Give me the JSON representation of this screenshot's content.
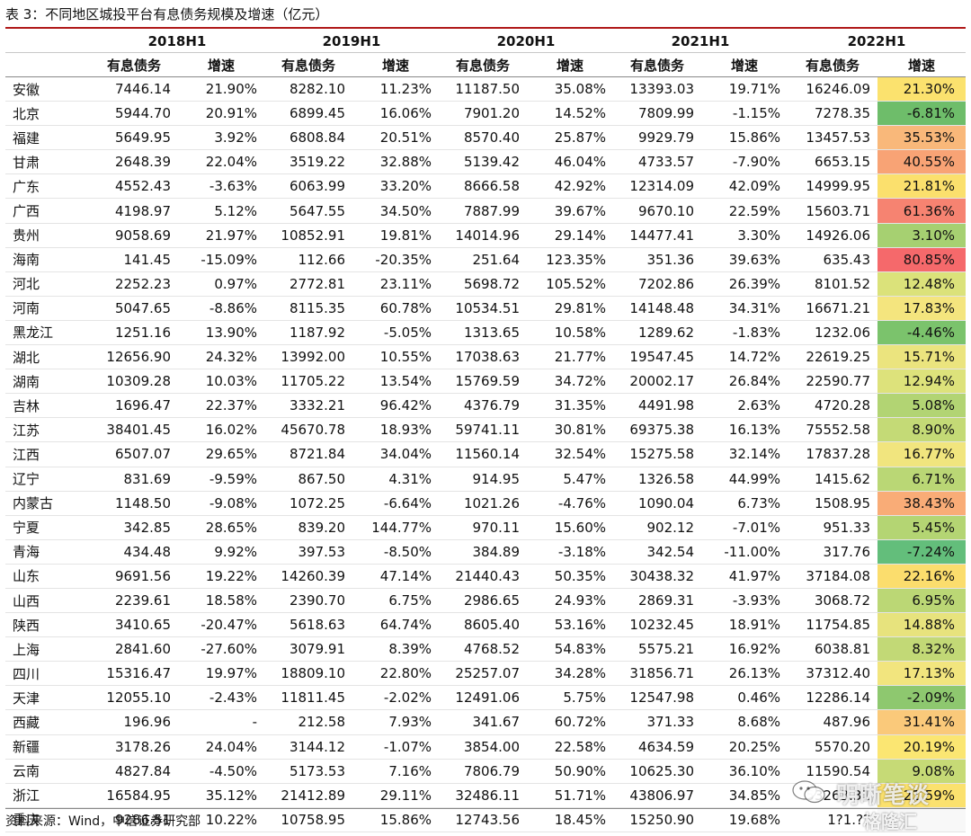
{
  "title": "表 3：不同地区城投平台有息债务规模及增速（亿元）",
  "columns": {
    "years": [
      "2018H1",
      "2019H1",
      "2020H1",
      "2021H1",
      "2022H1"
    ],
    "debt_label": "有息债务",
    "growth_label": "增速"
  },
  "rows": [
    {
      "province": "安徽",
      "d18": "7446.14",
      "g18": "21.90%",
      "d19": "8282.10",
      "g19": "11.23%",
      "d20": "11187.50",
      "g20": "35.08%",
      "d21": "13393.03",
      "g21": "19.71%",
      "d22": "16246.09",
      "g22": "21.30%",
      "c22": "#fbe26e"
    },
    {
      "province": "北京",
      "d18": "5944.70",
      "g18": "20.91%",
      "d19": "6899.45",
      "g19": "16.06%",
      "d20": "7901.20",
      "g20": "14.52%",
      "d21": "7809.99",
      "g21": "-1.15%",
      "d22": "7278.35",
      "g22": "-6.81%",
      "c22": "#6ebd6a"
    },
    {
      "province": "福建",
      "d18": "5649.95",
      "g18": "3.92%",
      "d19": "6808.84",
      "g19": "20.51%",
      "d20": "8570.40",
      "g20": "25.87%",
      "d21": "9929.79",
      "g21": "15.86%",
      "d22": "13457.53",
      "g22": "35.53%",
      "c22": "#f9b87a"
    },
    {
      "province": "甘肃",
      "d18": "2648.39",
      "g18": "22.04%",
      "d19": "3519.22",
      "g19": "32.88%",
      "d20": "5139.42",
      "g20": "46.04%",
      "d21": "4733.57",
      "g21": "-7.90%",
      "d22": "6653.15",
      "g22": "40.55%",
      "c22": "#f8a375"
    },
    {
      "province": "广东",
      "d18": "4552.43",
      "g18": "-3.63%",
      "d19": "6063.99",
      "g19": "33.20%",
      "d20": "8666.58",
      "g20": "42.92%",
      "d21": "12314.09",
      "g21": "42.09%",
      "d22": "14999.95",
      "g22": "21.81%",
      "c22": "#fbe06d"
    },
    {
      "province": "广西",
      "d18": "4198.97",
      "g18": "5.12%",
      "d19": "5647.55",
      "g19": "34.50%",
      "d20": "7887.99",
      "g20": "39.67%",
      "d21": "9670.10",
      "g21": "22.59%",
      "d22": "15603.71",
      "g22": "61.36%",
      "c22": "#f68371"
    },
    {
      "province": "贵州",
      "d18": "9058.69",
      "g18": "21.97%",
      "d19": "10852.91",
      "g19": "19.81%",
      "d20": "14014.96",
      "g20": "29.14%",
      "d21": "14477.41",
      "g21": "3.30%",
      "d22": "14926.06",
      "g22": "3.10%",
      "c22": "#a6d071"
    },
    {
      "province": "海南",
      "d18": "141.45",
      "g18": "-15.09%",
      "d19": "112.66",
      "g19": "-20.35%",
      "d20": "251.64",
      "g20": "123.35%",
      "d21": "351.36",
      "g21": "39.63%",
      "d22": "635.43",
      "g22": "80.85%",
      "c22": "#f5696b"
    },
    {
      "province": "河北",
      "d18": "2252.23",
      "g18": "0.97%",
      "d19": "2772.81",
      "g19": "23.11%",
      "d20": "5698.72",
      "g20": "105.52%",
      "d21": "7202.86",
      "g21": "26.39%",
      "d22": "8101.52",
      "g22": "12.48%",
      "c22": "#dbe27a"
    },
    {
      "province": "河南",
      "d18": "5047.65",
      "g18": "-8.86%",
      "d19": "8115.35",
      "g19": "60.78%",
      "d20": "10534.51",
      "g20": "29.81%",
      "d21": "14148.48",
      "g21": "34.31%",
      "d22": "16671.21",
      "g22": "17.83%",
      "c22": "#f4e57e"
    },
    {
      "province": "黑龙江",
      "d18": "1251.16",
      "g18": "13.90%",
      "d19": "1187.92",
      "g19": "-5.05%",
      "d20": "1313.65",
      "g20": "10.58%",
      "d21": "1289.62",
      "g21": "-1.83%",
      "d22": "1232.06",
      "g22": "-4.46%",
      "c22": "#7bc36c"
    },
    {
      "province": "湖北",
      "d18": "12656.90",
      "g18": "24.32%",
      "d19": "13992.00",
      "g19": "10.55%",
      "d20": "17038.63",
      "g20": "21.77%",
      "d21": "19547.45",
      "g21": "14.72%",
      "d22": "22619.25",
      "g22": "15.71%",
      "c22": "#ebe47e"
    },
    {
      "province": "湖南",
      "d18": "10309.28",
      "g18": "10.03%",
      "d19": "11705.22",
      "g19": "13.54%",
      "d20": "15769.59",
      "g20": "34.72%",
      "d21": "20002.17",
      "g21": "26.84%",
      "d22": "22590.77",
      "g22": "12.94%",
      "c22": "#dde27b"
    },
    {
      "province": "吉林",
      "d18": "1696.47",
      "g18": "22.37%",
      "d19": "3332.21",
      "g19": "96.42%",
      "d20": "4376.79",
      "g20": "31.35%",
      "d21": "4491.98",
      "g21": "2.63%",
      "d22": "4720.28",
      "g22": "5.08%",
      "c22": "#b2d473"
    },
    {
      "province": "江苏",
      "d18": "38401.45",
      "g18": "16.02%",
      "d19": "45670.78",
      "g19": "18.93%",
      "d20": "59741.11",
      "g20": "30.81%",
      "d21": "69375.38",
      "g21": "16.13%",
      "d22": "75552.58",
      "g22": "8.90%",
      "c22": "#c4da76"
    },
    {
      "province": "江西",
      "d18": "6507.07",
      "g18": "29.65%",
      "d19": "8721.84",
      "g19": "34.04%",
      "d20": "11560.14",
      "g20": "32.54%",
      "d21": "15275.58",
      "g21": "32.14%",
      "d22": "17837.28",
      "g22": "16.77%",
      "c22": "#f1e57e"
    },
    {
      "province": "辽宁",
      "d18": "831.69",
      "g18": "-9.59%",
      "d19": "867.50",
      "g19": "4.31%",
      "d20": "914.95",
      "g20": "5.47%",
      "d21": "1326.58",
      "g21": "44.99%",
      "d22": "1415.62",
      "g22": "6.71%",
      "c22": "#bad775"
    },
    {
      "province": "内蒙古",
      "d18": "1148.50",
      "g18": "-9.08%",
      "d19": "1072.25",
      "g19": "-6.64%",
      "d20": "1021.26",
      "g20": "-4.76%",
      "d21": "1090.04",
      "g21": "6.73%",
      "d22": "1508.95",
      "g22": "38.43%",
      "c22": "#f9ac77"
    },
    {
      "province": "宁夏",
      "d18": "342.85",
      "g18": "28.65%",
      "d19": "839.20",
      "g19": "144.77%",
      "d20": "970.11",
      "g20": "15.60%",
      "d21": "902.12",
      "g21": "-7.01%",
      "d22": "951.33",
      "g22": "5.45%",
      "c22": "#b4d573"
    },
    {
      "province": "青海",
      "d18": "434.48",
      "g18": "9.92%",
      "d19": "397.53",
      "g19": "-8.50%",
      "d20": "384.89",
      "g20": "-3.18%",
      "d21": "342.54",
      "g21": "-11.00%",
      "d22": "317.76",
      "g22": "-7.24%",
      "c22": "#63be7b"
    },
    {
      "province": "山东",
      "d18": "9691.56",
      "g18": "19.22%",
      "d19": "14260.39",
      "g19": "47.14%",
      "d20": "21440.43",
      "g20": "50.35%",
      "d21": "30438.32",
      "g21": "41.97%",
      "d22": "37184.08",
      "g22": "22.16%",
      "c22": "#fbdd6d"
    },
    {
      "province": "山西",
      "d18": "2239.61",
      "g18": "18.58%",
      "d19": "2390.70",
      "g19": "6.75%",
      "d20": "2986.65",
      "g20": "24.93%",
      "d21": "2869.31",
      "g21": "-3.93%",
      "d22": "3068.72",
      "g22": "6.95%",
      "c22": "#bbd775"
    },
    {
      "province": "陕西",
      "d18": "3410.65",
      "g18": "-20.47%",
      "d19": "5618.63",
      "g19": "64.74%",
      "d20": "8605.40",
      "g20": "53.16%",
      "d21": "10232.45",
      "g21": "18.91%",
      "d22": "11754.85",
      "g22": "14.88%",
      "c22": "#e7e37d"
    },
    {
      "province": "上海",
      "d18": "2841.60",
      "g18": "-27.60%",
      "d19": "3079.91",
      "g19": "8.39%",
      "d20": "4768.52",
      "g20": "54.83%",
      "d21": "5575.21",
      "g21": "16.92%",
      "d22": "6038.81",
      "g22": "8.32%",
      "c22": "#c2d976"
    },
    {
      "province": "四川",
      "d18": "15316.47",
      "g18": "19.97%",
      "d19": "18809.10",
      "g19": "22.80%",
      "d20": "25257.07",
      "g20": "34.28%",
      "d21": "31856.71",
      "g21": "26.13%",
      "d22": "37312.40",
      "g22": "17.13%",
      "c22": "#f2e57e"
    },
    {
      "province": "天津",
      "d18": "12055.10",
      "g18": "-2.43%",
      "d19": "11811.45",
      "g19": "-2.02%",
      "d20": "12491.06",
      "g20": "5.75%",
      "d21": "12547.98",
      "g21": "0.46%",
      "d22": "12286.14",
      "g22": "-2.09%",
      "c22": "#8ec86f"
    },
    {
      "province": "西藏",
      "d18": "196.96",
      "g18": "-",
      "d19": "212.58",
      "g19": "7.93%",
      "d20": "341.67",
      "g20": "60.72%",
      "d21": "371.33",
      "g21": "8.68%",
      "d22": "487.96",
      "g22": "31.41%",
      "c22": "#fac97a"
    },
    {
      "province": "新疆",
      "d18": "3178.26",
      "g18": "24.04%",
      "d19": "3144.12",
      "g19": "-1.07%",
      "d20": "3854.00",
      "g20": "22.58%",
      "d21": "4634.59",
      "g21": "20.25%",
      "d22": "5570.20",
      "g22": "20.19%",
      "c22": "#fbe672"
    },
    {
      "province": "云南",
      "d18": "4827.84",
      "g18": "-4.50%",
      "d19": "5173.53",
      "g19": "7.16%",
      "d20": "7806.79",
      "g20": "50.90%",
      "d21": "10625.30",
      "g21": "36.10%",
      "d22": "11590.54",
      "g22": "9.08%",
      "c22": "#c6da76"
    },
    {
      "province": "浙江",
      "d18": "16584.95",
      "g18": "35.12%",
      "d19": "21412.89",
      "g19": "29.11%",
      "d20": "32486.11",
      "g20": "51.71%",
      "d21": "43806.97",
      "g21": "34.85%",
      "d22": "53263.31",
      "g22": "21.59%",
      "c22": "#fbe16e"
    },
    {
      "province": "重庆",
      "d18": "9286.51",
      "g18": "10.22%",
      "d19": "10758.95",
      "g19": "15.86%",
      "d20": "12743.56",
      "g20": "18.45%",
      "d21": "15250.90",
      "g21": "19.68%",
      "d22": "1?1.??",
      "g22": "",
      "c22": "#f8f8f8"
    }
  ],
  "source": "资料来源：Wind，中信证券研究部",
  "watermark": {
    "main": "明晰笔谈",
    "logo": "格隆汇",
    "icon": "wechat-icon"
  }
}
